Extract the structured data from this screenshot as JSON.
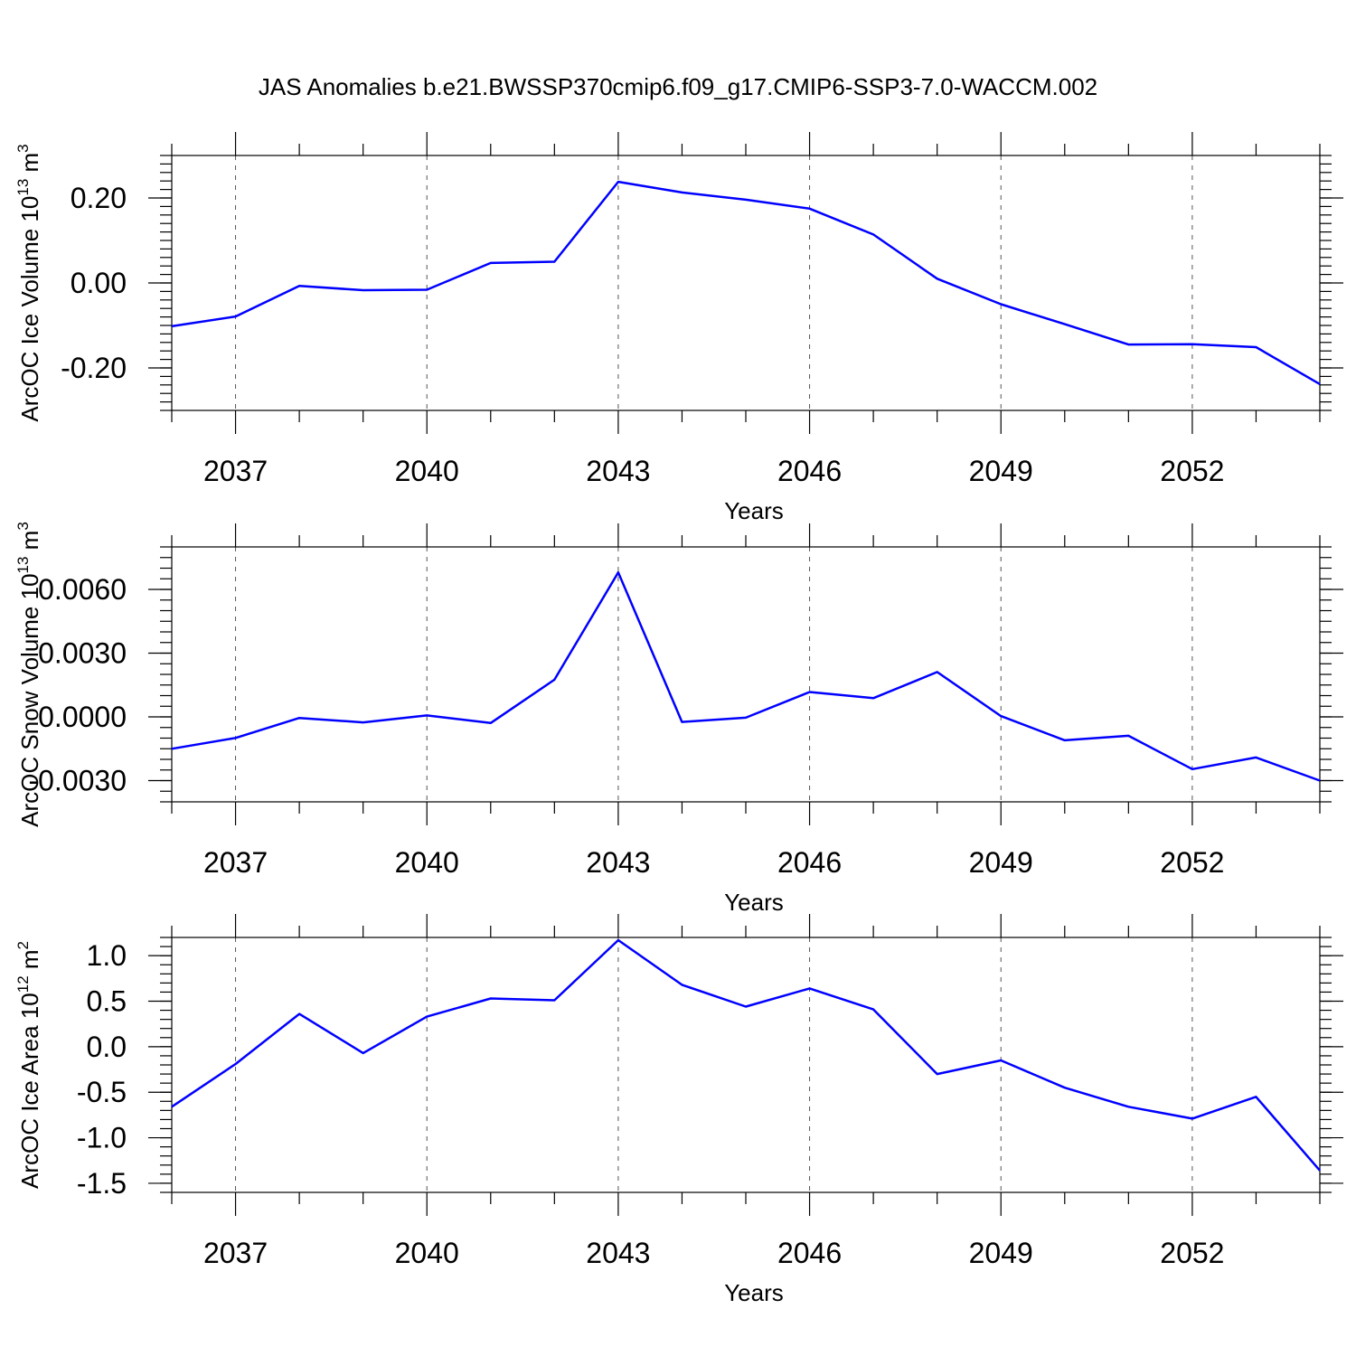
{
  "title": "JAS Anomalies b.e21.BWSSP370cmip6.f09_g17.CMIP6-SSP3-7.0-WACCM.002",
  "colors": {
    "series": "#0000ff",
    "axis": "#000000",
    "grid": "#555555"
  },
  "chart_data": [
    {
      "type": "line",
      "ylabel": "ArcOC Ice Volume 10^13 m^3",
      "ylabel_parts": {
        "base": "ArcOC Ice Volume 10",
        "exp1": "13",
        "mid": " m",
        "exp2": "3"
      },
      "xlabel": "Years",
      "xlim": [
        2036,
        2054
      ],
      "ylim": [
        -0.3,
        0.3
      ],
      "xticks": [
        2037,
        2040,
        2043,
        2046,
        2049,
        2052
      ],
      "yticks": [
        -0.2,
        0.0,
        0.2
      ],
      "ytick_labels": [
        "-0.20",
        "0.00",
        "0.20"
      ],
      "grid": "x-dashed",
      "x": [
        2036,
        2037,
        2038,
        2039,
        2040,
        2041,
        2042,
        2043,
        2044,
        2045,
        2046,
        2047,
        2048,
        2049,
        2050,
        2051,
        2052,
        2053,
        2054
      ],
      "y": [
        -0.102,
        -0.079,
        -0.007,
        -0.017,
        -0.016,
        0.047,
        0.05,
        0.238,
        0.213,
        0.196,
        0.175,
        0.114,
        0.01,
        -0.05,
        -0.097,
        -0.145,
        -0.144,
        -0.151,
        -0.238
      ]
    },
    {
      "type": "line",
      "ylabel": "ArcOC Snow Volume 10^13 m^3",
      "ylabel_parts": {
        "base": "ArcOC Snow Volume 10",
        "exp1": "13",
        "mid": " m",
        "exp2": "3"
      },
      "xlabel": "Years",
      "xlim": [
        2036,
        2054
      ],
      "ylim": [
        -0.004,
        0.008
      ],
      "xticks": [
        2037,
        2040,
        2043,
        2046,
        2049,
        2052
      ],
      "yticks": [
        -0.003,
        0.0,
        0.003,
        0.006
      ],
      "ytick_labels": [
        "-0.0030",
        "0.0000",
        "0.0030",
        "0.0060"
      ],
      "grid": "x-dashed",
      "x": [
        2036,
        2037,
        2038,
        2039,
        2040,
        2041,
        2042,
        2043,
        2044,
        2045,
        2046,
        2047,
        2048,
        2049,
        2050,
        2051,
        2052,
        2053,
        2054
      ],
      "y": [
        -0.0015,
        -0.00099,
        -5e-05,
        -0.00026,
        7e-05,
        -0.00029,
        0.00175,
        0.0068,
        -0.00024,
        -4e-05,
        0.00117,
        0.00088,
        0.00211,
        4e-05,
        -0.0011,
        -0.00089,
        -0.00246,
        -0.00191,
        -0.003
      ]
    },
    {
      "type": "line",
      "ylabel": "ArcOC Ice Area 10^12 m^2",
      "ylabel_parts": {
        "base": "ArcOC Ice Area 10",
        "exp1": "12",
        "mid": " m",
        "exp2": "2"
      },
      "xlabel": "Years",
      "xlim": [
        2036,
        2054
      ],
      "ylim": [
        -1.6,
        1.2
      ],
      "xticks": [
        2037,
        2040,
        2043,
        2046,
        2049,
        2052
      ],
      "yticks": [
        -1.5,
        -1.0,
        -0.5,
        0.0,
        0.5,
        1.0
      ],
      "ytick_labels": [
        "-1.5",
        "-1.0",
        "-0.5",
        "0.0",
        "0.5",
        "1.0"
      ],
      "grid": "x-dashed",
      "x": [
        2036,
        2037,
        2038,
        2039,
        2040,
        2041,
        2042,
        2043,
        2044,
        2045,
        2046,
        2047,
        2048,
        2049,
        2050,
        2051,
        2052,
        2053,
        2054
      ],
      "y": [
        -0.66,
        -0.19,
        0.36,
        -0.07,
        0.33,
        0.53,
        0.51,
        1.17,
        0.68,
        0.44,
        0.64,
        0.41,
        -0.3,
        -0.15,
        -0.45,
        -0.66,
        -0.79,
        -0.55,
        -1.36
      ]
    }
  ]
}
